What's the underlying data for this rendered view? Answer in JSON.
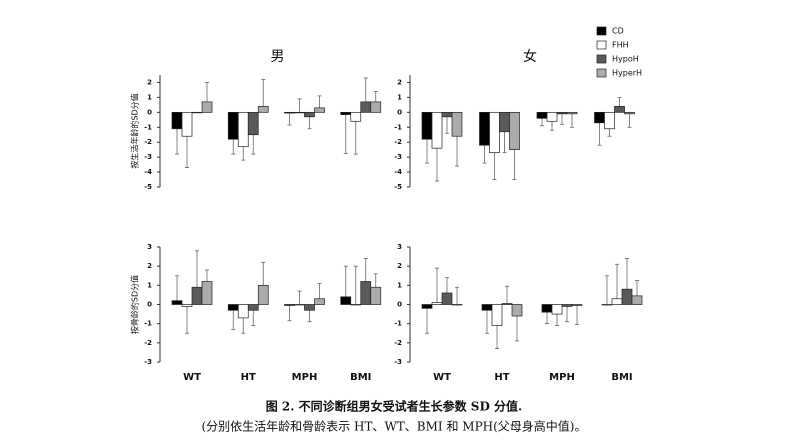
{
  "caption": [
    "图 2. 不同诊断组男女受试者生长参数 SD 分值.",
    "(分别依生活年龄和骨龄表示 HT、WT、BMI 和 MPH(父母身高中值)。"
  ],
  "chart_data": [
    {
      "type": "bar",
      "title": "男",
      "y_label": "按生活年龄的SD分值",
      "categories": [
        null,
        null,
        null,
        null
      ],
      "ylim": [
        -5,
        2.5
      ],
      "yticks": [
        2,
        1,
        0,
        -1,
        -2,
        -3,
        -4,
        -5
      ],
      "series": [
        {
          "name": "CD",
          "color": "#000000",
          "values": [
            -1.1,
            -1.8,
            -0.05,
            -0.15
          ],
          "errors": [
            1.7,
            1.0,
            0.8,
            2.6
          ]
        },
        {
          "name": "FHH",
          "color": "#ffffff",
          "values": [
            -1.6,
            -2.3,
            0,
            -0.6
          ],
          "errors": [
            2.1,
            0.9,
            0.9,
            2.2
          ]
        },
        {
          "name": "HypoH",
          "color": "#5a5a5a",
          "values": [
            0,
            -1.5,
            -0.3,
            0.7
          ],
          "errors": [
            0,
            1.3,
            0.8,
            1.6
          ]
        },
        {
          "name": "HyperH",
          "color": "#ababab",
          "values": [
            0.7,
            0.4,
            0.3,
            0.7
          ],
          "errors": [
            1.3,
            1.8,
            0.8,
            0.7
          ]
        }
      ]
    },
    {
      "type": "bar",
      "title": "女",
      "categories": [
        null,
        null,
        null,
        null
      ],
      "ylim": [
        -5,
        2.5
      ],
      "yticks": [
        2,
        1,
        0,
        -1,
        -2,
        -3,
        -4,
        -5
      ],
      "series": [
        {
          "values": [
            -1.8,
            -2.2,
            -0.4,
            -0.7
          ],
          "errors": [
            1.6,
            1.2,
            0.5,
            1.5
          ]
        },
        {
          "values": [
            -2.4,
            -2.7,
            -0.6,
            -1.1
          ],
          "errors": [
            2.2,
            1.8,
            0.6,
            0.5
          ]
        },
        {
          "values": [
            -0.3,
            -1.3,
            -0.1,
            0.4
          ],
          "errors": [
            1.1,
            1.4,
            0.7,
            0.6
          ]
        },
        {
          "values": [
            -1.6,
            -2.5,
            -0.1,
            -0.1
          ],
          "errors": [
            2.0,
            2.0,
            0.9,
            0.9
          ]
        }
      ]
    },
    {
      "type": "bar",
      "y_label": "按骨龄的SD分值",
      "categories": [
        "WT",
        "HT",
        "MPH",
        "BMI"
      ],
      "ylim": [
        -3,
        3
      ],
      "yticks": [
        3,
        2,
        1,
        0,
        -1,
        -2,
        -3
      ],
      "series": [
        {
          "values": [
            0.2,
            -0.3,
            -0.05,
            0.4
          ],
          "errors": [
            1.3,
            1.0,
            0.8,
            1.6
          ]
        },
        {
          "values": [
            -0.1,
            -0.7,
            0,
            0
          ],
          "errors": [
            1.4,
            0.8,
            0.7,
            2.0
          ]
        },
        {
          "values": [
            0.9,
            -0.3,
            -0.3,
            1.2
          ],
          "errors": [
            1.9,
            0.8,
            0.6,
            1.2
          ]
        },
        {
          "values": [
            1.2,
            1.0,
            0.3,
            0.9
          ],
          "errors": [
            0.6,
            1.2,
            0.8,
            0.7
          ]
        }
      ]
    },
    {
      "type": "bar",
      "categories": [
        "WT",
        "HT",
        "MPH",
        "BMI"
      ],
      "ylim": [
        -3,
        3
      ],
      "yticks": [
        3,
        2,
        1,
        0,
        -1,
        -2,
        -3
      ],
      "series": [
        {
          "values": [
            -0.2,
            -0.3,
            -0.4,
            0
          ],
          "errors": [
            1.3,
            1.2,
            0.6,
            1.5
          ]
        },
        {
          "values": [
            0.1,
            -1.1,
            -0.5,
            0.3
          ],
          "errors": [
            1.8,
            1.2,
            0.6,
            1.8
          ]
        },
        {
          "values": [
            0.6,
            0.05,
            -0.1,
            0.8
          ],
          "errors": [
            0.8,
            0.9,
            0.8,
            1.6
          ]
        },
        {
          "values": [
            0,
            -0.6,
            -0.05,
            0.45
          ],
          "errors": [
            0.9,
            1.3,
            1.0,
            0.8
          ]
        }
      ]
    }
  ]
}
